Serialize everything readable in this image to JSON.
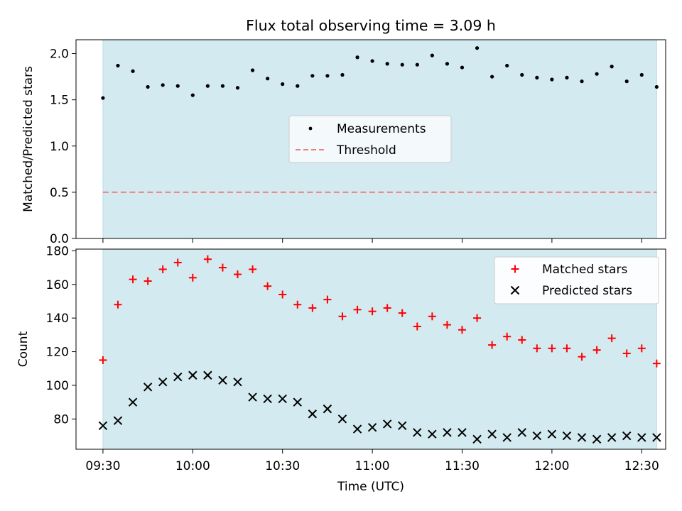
{
  "chart_data": [
    {
      "type": "scatter",
      "title": "Flux total observing time = 3.09 h",
      "xlabel": "",
      "ylabel": "Matched/Predicted stars",
      "ylim": [
        0,
        2.15
      ],
      "xlim": [
        "09:21",
        "12:38"
      ],
      "yticks": [
        0,
        0.5,
        1.0,
        1.5,
        2.0
      ],
      "ytick_labels": [
        "0.0",
        "0.5",
        "1.0",
        "1.5",
        "2.0"
      ],
      "observing_window": [
        "09:30",
        "12:35"
      ],
      "observing_window_color": "#d3eaf0",
      "legend_position": "center",
      "series": [
        {
          "name": "Measurements",
          "marker": "dot",
          "color": "#000000",
          "x": [
            "09:30",
            "09:35",
            "09:40",
            "09:45",
            "09:50",
            "09:55",
            "10:00",
            "10:05",
            "10:10",
            "10:15",
            "10:20",
            "10:25",
            "10:30",
            "10:35",
            "10:40",
            "10:45",
            "10:50",
            "10:55",
            "11:00",
            "11:05",
            "11:10",
            "11:15",
            "11:20",
            "11:25",
            "11:30",
            "11:35",
            "11:40",
            "11:45",
            "11:50",
            "11:55",
            "12:00",
            "12:05",
            "12:10",
            "12:15",
            "12:20",
            "12:25",
            "12:30",
            "12:35"
          ],
          "values": [
            1.52,
            1.87,
            1.81,
            1.64,
            1.66,
            1.65,
            1.55,
            1.65,
            1.65,
            1.63,
            1.82,
            1.73,
            1.67,
            1.65,
            1.76,
            1.76,
            1.77,
            1.96,
            1.92,
            1.89,
            1.88,
            1.88,
            1.98,
            1.89,
            1.85,
            2.06,
            1.75,
            1.87,
            1.77,
            1.74,
            1.72,
            1.74,
            1.7,
            1.78,
            1.86,
            1.7,
            1.77,
            1.64
          ]
        },
        {
          "name": "Threshold",
          "style": "dashed",
          "color": "#f08080",
          "x": [
            "09:30",
            "12:35"
          ],
          "values": [
            0.5,
            0.5
          ]
        }
      ]
    },
    {
      "type": "scatter",
      "title": "",
      "xlabel": "Time (UTC)",
      "ylabel": "Count",
      "ylim": [
        62,
        181
      ],
      "xlim": [
        "09:21",
        "12:38"
      ],
      "yticks": [
        80,
        100,
        120,
        140,
        160,
        180
      ],
      "ytick_labels": [
        "80",
        "100",
        "120",
        "140",
        "160",
        "180"
      ],
      "xticks": [
        "09:30",
        "10:00",
        "10:30",
        "11:00",
        "11:30",
        "12:00",
        "12:30"
      ],
      "xtick_labels": [
        "09:30",
        "10:00",
        "10:30",
        "11:00",
        "11:30",
        "12:00",
        "12:30"
      ],
      "observing_window": [
        "09:30",
        "12:35"
      ],
      "observing_window_color": "#d3eaf0",
      "legend_position": "top-right",
      "series": [
        {
          "name": "Matched stars",
          "marker": "plus",
          "color": "#ff0000",
          "x": [
            "09:30",
            "09:35",
            "09:40",
            "09:45",
            "09:50",
            "09:55",
            "10:00",
            "10:05",
            "10:10",
            "10:15",
            "10:20",
            "10:25",
            "10:30",
            "10:35",
            "10:40",
            "10:45",
            "10:50",
            "10:55",
            "11:00",
            "11:05",
            "11:10",
            "11:15",
            "11:20",
            "11:25",
            "11:30",
            "11:35",
            "11:40",
            "11:45",
            "11:50",
            "11:55",
            "12:00",
            "12:05",
            "12:10",
            "12:15",
            "12:20",
            "12:25",
            "12:30",
            "12:35"
          ],
          "values": [
            115,
            148,
            163,
            162,
            169,
            173,
            164,
            175,
            170,
            166,
            169,
            159,
            154,
            148,
            146,
            151,
            141,
            145,
            144,
            146,
            143,
            135,
            141,
            136,
            133,
            140,
            124,
            129,
            127,
            122,
            122,
            122,
            117,
            121,
            128,
            119,
            122,
            113
          ]
        },
        {
          "name": "Predicted stars",
          "marker": "x",
          "color": "#000000",
          "x": [
            "09:30",
            "09:35",
            "09:40",
            "09:45",
            "09:50",
            "09:55",
            "10:00",
            "10:05",
            "10:10",
            "10:15",
            "10:20",
            "10:25",
            "10:30",
            "10:35",
            "10:40",
            "10:45",
            "10:50",
            "10:55",
            "11:00",
            "11:05",
            "11:10",
            "11:15",
            "11:20",
            "11:25",
            "11:30",
            "11:35",
            "11:40",
            "11:45",
            "11:50",
            "11:55",
            "12:00",
            "12:05",
            "12:10",
            "12:15",
            "12:20",
            "12:25",
            "12:30",
            "12:35"
          ],
          "values": [
            76,
            79,
            90,
            99,
            102,
            105,
            106,
            106,
            103,
            102,
            93,
            92,
            92,
            90,
            83,
            86,
            80,
            74,
            75,
            77,
            76,
            72,
            71,
            72,
            72,
            68,
            71,
            69,
            72,
            70,
            71,
            70,
            69,
            68,
            69,
            70,
            69,
            69
          ]
        }
      ]
    }
  ]
}
